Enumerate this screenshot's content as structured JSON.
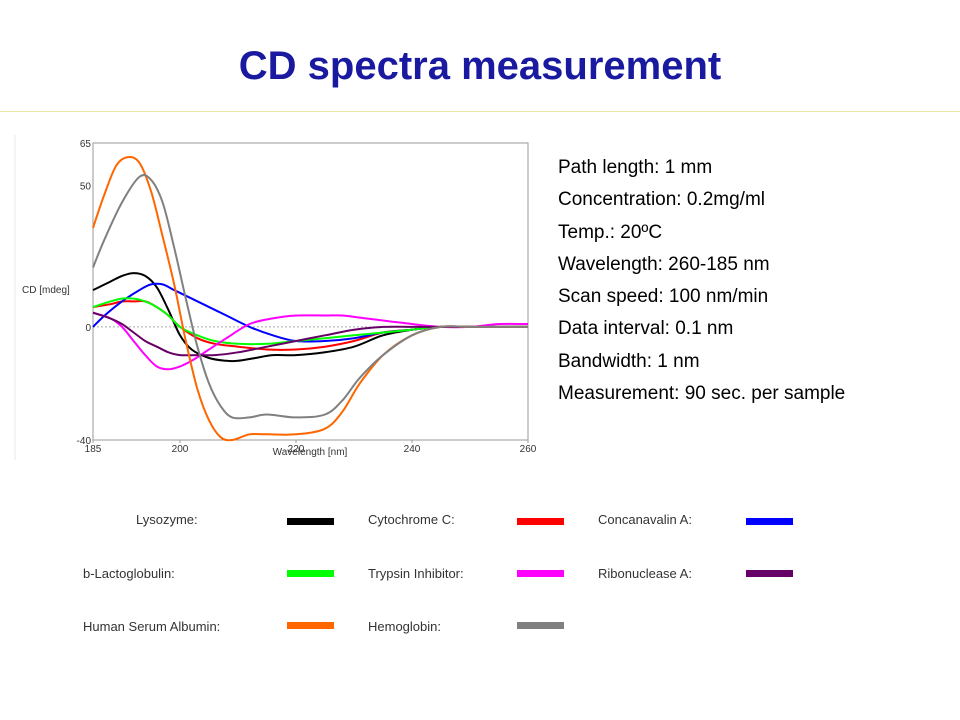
{
  "slide": {
    "title": "CD spectra measurement",
    "colors": {
      "title": "#1a1aa0",
      "rule": "#e6e6a8"
    }
  },
  "parameters": [
    "Path length: 1 mm",
    "Concentration: 0.2mg/ml",
    "Temp.: 20ºC",
    "Wavelength: 260-185 nm",
    "Scan speed: 100 nm/min",
    "Data interval: 0.1 nm",
    "Bandwidth: 1 nm",
    "Measurement: 90 sec. per sample"
  ],
  "chart_data": {
    "type": "line",
    "xlabel": "Wavelength [nm]",
    "ylabel": "CD [mdeg]",
    "xlim": [
      185,
      260
    ],
    "ylim": [
      -40,
      65
    ],
    "xticks": [
      185,
      200,
      220,
      240,
      260
    ],
    "yticks": [
      -40,
      0,
      50,
      65
    ],
    "grid": false,
    "zero_line": true,
    "series": [
      {
        "name": "Lysozyme:",
        "color": "#000000",
        "x": [
          185,
          188,
          190,
          192,
          194,
          196,
          198,
          200,
          202,
          205,
          208,
          210,
          213,
          216,
          220,
          225,
          230,
          235,
          240,
          245,
          250,
          255,
          260
        ],
        "y": [
          13,
          16,
          18,
          19,
          18,
          14,
          6,
          -3,
          -8,
          -11,
          -12,
          -12,
          -11,
          -10,
          -10,
          -9,
          -7,
          -3,
          -1,
          0,
          0,
          0,
          0
        ]
      },
      {
        "name": "Cytochrome C:",
        "color": "#ff0000",
        "x": [
          185,
          188,
          190,
          192,
          194,
          196,
          198,
          200,
          203,
          206,
          210,
          215,
          220,
          225,
          230,
          235,
          240,
          245,
          250,
          255,
          260
        ],
        "y": [
          7,
          8,
          9,
          9,
          9,
          7,
          4,
          0,
          -4,
          -6,
          -7,
          -8,
          -8,
          -7,
          -5,
          -2,
          -1,
          0,
          0,
          0,
          0
        ]
      },
      {
        "name": "Concanavalin A:",
        "color": "#0000ff",
        "x": [
          185,
          187,
          190,
          193,
          195,
          197,
          199,
          201,
          204,
          208,
          212,
          216,
          220,
          225,
          230,
          235,
          240,
          245,
          250,
          255,
          260
        ],
        "y": [
          0,
          4,
          9,
          13,
          15,
          15,
          13,
          11,
          8,
          4,
          0,
          -3,
          -5,
          -5,
          -4,
          -2,
          -1,
          0,
          0,
          0,
          0
        ]
      },
      {
        "name": "b-Lactoglobulin:",
        "color": "#00ff00",
        "x": [
          185,
          188,
          190,
          192,
          194,
          196,
          198,
          200,
          203,
          206,
          210,
          215,
          220,
          225,
          230,
          235,
          240,
          245,
          250,
          255,
          260
        ],
        "y": [
          7,
          9,
          10,
          10,
          9,
          7,
          4,
          0,
          -3,
          -5,
          -6,
          -6,
          -5,
          -4,
          -3,
          -2,
          -1,
          0,
          0,
          0,
          0
        ]
      },
      {
        "name": "Trypsin Inhibitor:",
        "color": "#ff00ff",
        "x": [
          185,
          188,
          190,
          192,
          194,
          196,
          198,
          200,
          202,
          205,
          208,
          212,
          216,
          220,
          225,
          228,
          232,
          236,
          240,
          245,
          250,
          255,
          260
        ],
        "y": [
          5,
          3,
          0,
          -5,
          -10,
          -14,
          -15,
          -14,
          -12,
          -8,
          -4,
          1,
          3,
          4,
          4,
          4,
          3,
          2,
          1,
          0,
          0,
          1,
          1
        ]
      },
      {
        "name": "Ribonuclease A:",
        "color": "#660066",
        "x": [
          185,
          188,
          190,
          192,
          194,
          196,
          198,
          200,
          203,
          206,
          210,
          215,
          220,
          225,
          230,
          235,
          240,
          245,
          250,
          255,
          260
        ],
        "y": [
          5,
          3,
          1,
          -2,
          -5,
          -7,
          -9,
          -10,
          -10,
          -10,
          -9,
          -7,
          -5,
          -3,
          -1,
          0,
          0,
          0,
          0,
          0,
          0
        ]
      },
      {
        "name": "Human Serum Albumin:",
        "color": "#ff6600",
        "x": [
          185,
          187,
          189,
          191,
          193,
          195,
          197,
          199,
          201,
          203,
          205,
          207,
          209,
          212,
          215,
          220,
          225,
          228,
          231,
          235,
          240,
          245,
          250,
          255,
          260
        ],
        "y": [
          35,
          47,
          57,
          60,
          58,
          48,
          32,
          15,
          -5,
          -22,
          -33,
          -39,
          -40,
          -38,
          -38,
          -38,
          -36,
          -30,
          -20,
          -10,
          -3,
          0,
          0,
          0,
          0
        ]
      },
      {
        "name": "Hemoglobin:",
        "color": "#808080",
        "x": [
          185,
          187,
          190,
          193,
          195,
          197,
          199,
          201,
          203,
          205,
          207,
          209,
          212,
          215,
          220,
          225,
          228,
          231,
          235,
          240,
          245,
          250,
          255,
          260
        ],
        "y": [
          21,
          31,
          44,
          53,
          52,
          44,
          28,
          10,
          -7,
          -20,
          -28,
          -32,
          -32,
          -31,
          -32,
          -31,
          -26,
          -18,
          -10,
          -3,
          0,
          0,
          0,
          0
        ]
      }
    ]
  }
}
